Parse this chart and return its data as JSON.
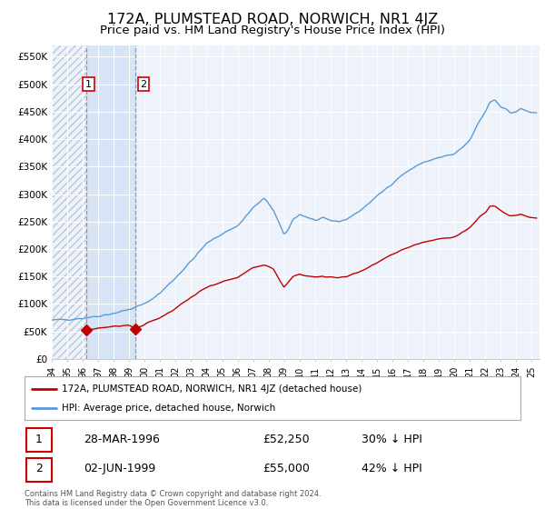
{
  "title": "172A, PLUMSTEAD ROAD, NORWICH, NR1 4JZ",
  "subtitle": "Price paid vs. HM Land Registry's House Price Index (HPI)",
  "title_fontsize": 11.5,
  "subtitle_fontsize": 9.5,
  "background_color": "#ffffff",
  "plot_background_color": "#eef3fb",
  "grid_color": "#ffffff",
  "ylabel_ticks": [
    "£0",
    "£50K",
    "£100K",
    "£150K",
    "£200K",
    "£250K",
    "£300K",
    "£350K",
    "£400K",
    "£450K",
    "£500K",
    "£550K"
  ],
  "ylabel_values": [
    0,
    50000,
    100000,
    150000,
    200000,
    250000,
    300000,
    350000,
    400000,
    450000,
    500000,
    550000
  ],
  "ylim": [
    0,
    570000
  ],
  "xlim_start": 1994.0,
  "xlim_end": 2025.5,
  "hpi_color": "#5b9bd5",
  "price_color": "#c00000",
  "transaction1_date": 1996.24,
  "transaction1_value": 52250,
  "transaction2_date": 1999.42,
  "transaction2_value": 55000,
  "sale_marker_size": 7,
  "legend_label_price": "172A, PLUMSTEAD ROAD, NORWICH, NR1 4JZ (detached house)",
  "legend_label_hpi": "HPI: Average price, detached house, Norwich",
  "table_row1_num": "1",
  "table_row1_date": "28-MAR-1996",
  "table_row1_price": "£52,250",
  "table_row1_hpi": "30% ↓ HPI",
  "table_row2_num": "2",
  "table_row2_date": "02-JUN-1999",
  "table_row2_price": "£55,000",
  "table_row2_hpi": "42% ↓ HPI",
  "footnote": "Contains HM Land Registry data © Crown copyright and database right 2024.\nThis data is licensed under the Open Government Licence v3.0.",
  "shaded_region_start": 1996.24,
  "shaded_region_end": 1999.42,
  "shaded_region_color": "#d6e4f5"
}
